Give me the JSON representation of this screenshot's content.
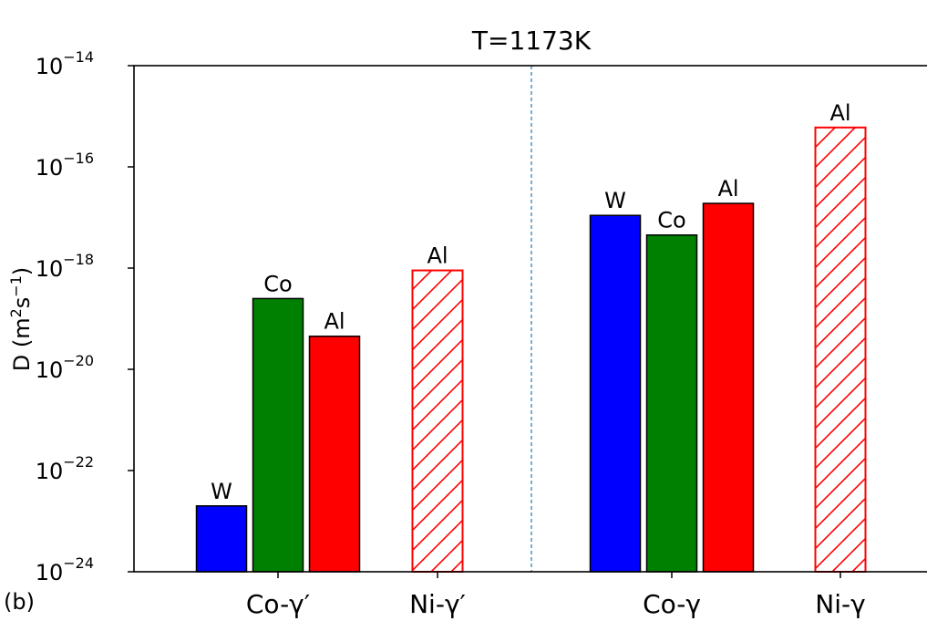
{
  "panel_label": "(b)",
  "chart_data": {
    "type": "bar",
    "title": "T=1173K",
    "ylabel": "D (m²s⁻¹)",
    "yscale": "log",
    "ylim": [
      1e-24,
      1e-14
    ],
    "y_tick_labels": [
      {
        "value": 1e-24,
        "base": "10",
        "exp": "−24"
      },
      {
        "value": 1e-22,
        "base": "10",
        "exp": "−22"
      },
      {
        "value": 1e-20,
        "base": "10",
        "exp": "−20"
      },
      {
        "value": 1e-18,
        "base": "10",
        "exp": "−18"
      },
      {
        "value": 1e-16,
        "base": "10",
        "exp": "−16"
      },
      {
        "value": 1e-14,
        "base": "10",
        "exp": "−14"
      }
    ],
    "x_tick_labels": [
      "Co-γ′",
      "Ni-γ′",
      "Co-γ",
      "Ni-γ"
    ],
    "divider": {
      "style": "dashed",
      "color": "#1f77b4"
    },
    "groups": [
      {
        "name": "Co-γ′",
        "bars": [
          {
            "label": "W",
            "value": 2e-23,
            "color": "#0000ff",
            "hatched": false
          },
          {
            "label": "Co",
            "value": 2.5e-19,
            "color": "#008000",
            "hatched": false
          },
          {
            "label": "Al",
            "value": 4.5e-20,
            "color": "#ff0000",
            "hatched": false
          }
        ]
      },
      {
        "name": "Ni-γ′",
        "bars": [
          {
            "label": "Al",
            "value": 9e-19,
            "color": "#ff0000",
            "hatched": true
          }
        ]
      },
      {
        "name": "Co-γ",
        "bars": [
          {
            "label": "W",
            "value": 1.1e-17,
            "color": "#0000ff",
            "hatched": false
          },
          {
            "label": "Co",
            "value": 4.5e-18,
            "color": "#008000",
            "hatched": false
          },
          {
            "label": "Al",
            "value": 1.9e-17,
            "color": "#ff0000",
            "hatched": false
          }
        ]
      },
      {
        "name": "Ni-γ",
        "bars": [
          {
            "label": "Al",
            "value": 6e-16,
            "color": "#ff0000",
            "hatched": true
          }
        ]
      }
    ]
  }
}
